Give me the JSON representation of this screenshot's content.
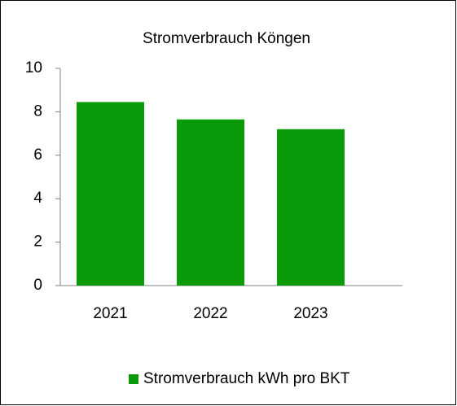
{
  "chart_data": {
    "type": "bar",
    "title": "Stromverbrauch Köngen",
    "categories": [
      "2021",
      "2022",
      "2023"
    ],
    "series": [
      {
        "name": "Stromverbrauch kWh pro BKT",
        "color": "#0a9a0a",
        "values": [
          8.45,
          7.65,
          7.2
        ]
      }
    ],
    "ylim": [
      0,
      10
    ],
    "yticks": [
      0,
      2,
      4,
      6,
      8,
      10
    ],
    "grid": false,
    "legend": "bottom"
  }
}
